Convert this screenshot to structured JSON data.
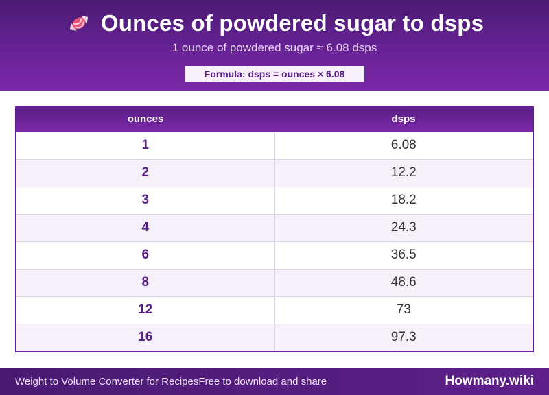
{
  "header": {
    "icon": "candy-icon",
    "title": "Ounces of powdered sugar to dsps",
    "subtitle": "1 ounce of powdered sugar ≈ 6.08 dsps",
    "formula": "Formula: dsps = ounces × 6.08"
  },
  "table": {
    "columns": [
      "ounces",
      "dsps"
    ],
    "rows": [
      [
        "1",
        "6.08"
      ],
      [
        "2",
        "12.2"
      ],
      [
        "3",
        "18.2"
      ],
      [
        "4",
        "24.3"
      ],
      [
        "6",
        "36.5"
      ],
      [
        "8",
        "48.6"
      ],
      [
        "12",
        "73"
      ],
      [
        "16",
        "97.3"
      ]
    ]
  },
  "footer": {
    "left": "Weight to Volume Converter for Recipes",
    "middle": "Free to download and share",
    "brand": "Howmany.wiki"
  },
  "colors": {
    "primary": "#6a2398",
    "dark": "#4a1a72",
    "accent_text": "#5a1f86"
  }
}
